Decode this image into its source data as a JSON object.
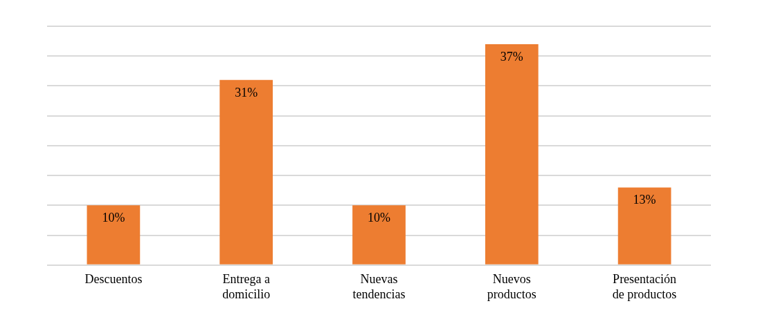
{
  "chart_data": {
    "type": "bar",
    "categories": [
      "Descuentos",
      "Entrega a domicilio",
      "Nuevas tendencias",
      "Nuevos productos",
      "Presentación de productos"
    ],
    "values": [
      10,
      31,
      10,
      37,
      13
    ],
    "value_labels": [
      "10%",
      "31%",
      "10%",
      "37%",
      "13%"
    ],
    "color": "#ed7d31",
    "ylim": [
      0,
      40
    ],
    "yticks": [
      {
        "value": 0,
        "label": null
      },
      {
        "value": 5,
        "label": null
      },
      {
        "value": 10,
        "label": null
      },
      {
        "value": 15,
        "label": null
      },
      {
        "value": 20,
        "label": null
      },
      {
        "value": 25,
        "label": null
      },
      {
        "value": 30,
        "label": null
      },
      {
        "value": 35,
        "label": null
      },
      {
        "value": 40,
        "label": null
      }
    ],
    "grid": "y",
    "tick_labels": "x",
    "legend": false
  }
}
